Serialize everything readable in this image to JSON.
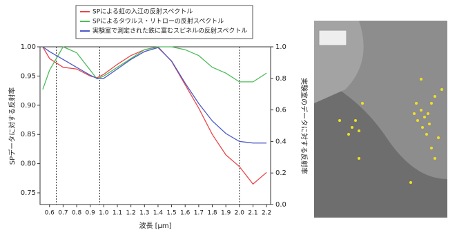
{
  "chart_data": {
    "type": "line",
    "x_label": "波長 [μm]",
    "y_label": "SPデータに対する反射率",
    "y2_label": "実験室のデータに対する反射率",
    "x": [
      0.55,
      0.6,
      0.7,
      0.8,
      0.9,
      0.95,
      1.0,
      1.1,
      1.2,
      1.3,
      1.4,
      1.5,
      1.6,
      1.7,
      1.8,
      1.9,
      2.0,
      2.1,
      2.2
    ],
    "series": [
      {
        "name": "SPによる虹の入江の反射スペクトル",
        "color": "#e8474a",
        "values": [
          1.0,
          0.98,
          0.965,
          0.962,
          0.95,
          0.947,
          0.953,
          0.97,
          0.985,
          0.995,
          1.0,
          0.975,
          0.935,
          0.895,
          0.85,
          0.815,
          0.795,
          0.765,
          0.785
        ]
      },
      {
        "name": "SPによるタウルス・リトローの反射スペクトル",
        "color": "#4dbb5a",
        "values": [
          0.927,
          0.96,
          1.0,
          0.99,
          0.96,
          0.945,
          0.95,
          0.965,
          0.98,
          0.995,
          1.0,
          1.0,
          0.995,
          0.985,
          0.965,
          0.955,
          0.94,
          0.94,
          0.955
        ]
      },
      {
        "name": "実験室で測定された鉄に富むスピネルの反射スペクトル",
        "color": "#4a58c8",
        "axis": "y2",
        "values": [
          1.0,
          0.97,
          0.92,
          0.87,
          0.82,
          0.8,
          0.8,
          0.86,
          0.92,
          0.97,
          0.995,
          0.91,
          0.77,
          0.64,
          0.53,
          0.45,
          0.4,
          0.39,
          0.39
        ]
      }
    ],
    "reference_lines": [
      0.65,
      0.97,
      2.0
    ],
    "xlim": [
      0.53,
      2.23
    ],
    "xticks": [
      0.6,
      0.7,
      0.8,
      0.9,
      {
        "value": 1.0,
        "label": "1.0"
      },
      1.1,
      1.2,
      1.3,
      1.4,
      1.5,
      1.6,
      1.7,
      1.8,
      1.9,
      {
        "value": 2.0,
        "label": "2.0"
      },
      2.1,
      2.2
    ],
    "ylim": [
      0.73,
      1.0
    ],
    "yticks": [
      0.75,
      {
        "value": 0.8,
        "label": "0.80"
      },
      0.85,
      {
        "value": 0.9,
        "label": "0.90"
      },
      0.95,
      {
        "value": 1.0,
        "label": "1.00"
      }
    ],
    "y2lim": [
      0.0,
      1.0
    ],
    "y2ticks": [
      {
        "value": 0.0,
        "label": "0.0"
      },
      0.2,
      0.4,
      0.6,
      0.8,
      {
        "value": 1.0,
        "label": "1.0"
      }
    ]
  }
}
